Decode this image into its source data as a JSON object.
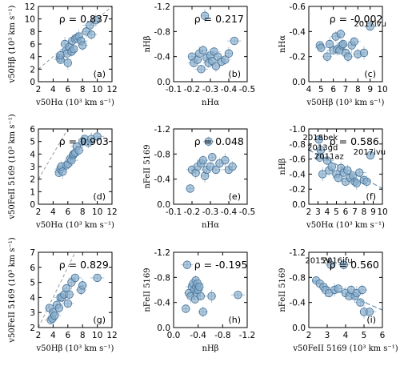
{
  "chart_data": [
    {
      "type": "scatter",
      "label": "(a)",
      "rho": "0.837",
      "xlim": [
        2,
        12
      ],
      "ylim": [
        0,
        12
      ],
      "xticks": [
        "2",
        "4",
        "6",
        "8",
        "10",
        "12"
      ],
      "yticks": [
        "0",
        "2",
        "4",
        "6",
        "8",
        "10",
        "12"
      ],
      "xlabel": "v50Hα (10³ km s⁻¹)",
      "ylabel": "v50Hβ (10³ km s⁻¹)",
      "diagonal": true,
      "fit": false,
      "points": [
        [
          4.9,
          3.8
        ],
        [
          5.0,
          3.5
        ],
        [
          5.0,
          4.2
        ],
        [
          5.6,
          6.0
        ],
        [
          5.8,
          5.0
        ],
        [
          5.9,
          4.5
        ],
        [
          6.0,
          3.0
        ],
        [
          6.2,
          5.5
        ],
        [
          6.5,
          4.8
        ],
        [
          6.6,
          6.5
        ],
        [
          6.8,
          5.2
        ],
        [
          7.0,
          6.8
        ],
        [
          7.2,
          7.0
        ],
        [
          7.5,
          7.2
        ],
        [
          7.8,
          6.5
        ],
        [
          8.0,
          5.8
        ],
        [
          8.5,
          8.0
        ],
        [
          9.0,
          9.0
        ],
        [
          9.2,
          7.5
        ],
        [
          9.8,
          9.8
        ]
      ]
    },
    {
      "type": "scatter",
      "label": "(b)",
      "rho": "0.217",
      "xlim": [
        -0.1,
        -0.5
      ],
      "ylim": [
        0.0,
        -1.2
      ],
      "xticks": [
        "-0.1",
        "-0.2",
        "-0.3",
        "-0.4",
        "-0.5"
      ],
      "yticks": [
        "-1.2",
        "-0.8",
        "-0.4",
        "0.0"
      ],
      "xlabel": "nHα",
      "ylabel": "nHβ",
      "diagonal": false,
      "fit": false,
      "points": [
        [
          -0.2,
          -0.4
        ],
        [
          -0.21,
          -0.3
        ],
        [
          -0.23,
          -0.35
        ],
        [
          -0.24,
          -0.45
        ],
        [
          -0.25,
          -0.2
        ],
        [
          -0.26,
          -0.5
        ],
        [
          -0.27,
          -1.05
        ],
        [
          -0.28,
          -0.38
        ],
        [
          -0.29,
          -0.3
        ],
        [
          -0.3,
          -0.42
        ],
        [
          -0.31,
          -0.33
        ],
        [
          -0.32,
          -0.48
        ],
        [
          -0.33,
          -0.25
        ],
        [
          -0.34,
          -0.4
        ],
        [
          -0.36,
          -0.32
        ],
        [
          -0.38,
          -0.35
        ],
        [
          -0.4,
          -0.45
        ],
        [
          -0.43,
          -0.65
        ]
      ]
    },
    {
      "type": "scatter",
      "label": "(c)",
      "rho": "-0.002",
      "xlim": [
        4,
        10
      ],
      "ylim": [
        0.0,
        -0.6
      ],
      "xticks": [
        "4",
        "5",
        "6",
        "7",
        "8",
        "9",
        "10"
      ],
      "yticks": [
        "-0.6",
        "-0.4",
        "-0.2",
        "0.0"
      ],
      "xlabel": "v50Hβ (10³ km s⁻¹)",
      "ylabel": "nHα",
      "diagonal": false,
      "fit": false,
      "annotations": [
        {
          "text": "2017ivu",
          "x": 9.0,
          "y": -0.44
        }
      ],
      "points": [
        [
          4.9,
          -0.29
        ],
        [
          5.0,
          -0.27
        ],
        [
          5.5,
          -0.2
        ],
        [
          5.7,
          -0.3
        ],
        [
          6.0,
          -0.25
        ],
        [
          6.2,
          -0.36
        ],
        [
          6.3,
          -0.26
        ],
        [
          6.5,
          -0.25
        ],
        [
          6.6,
          -0.38
        ],
        [
          6.7,
          -0.29
        ],
        [
          6.8,
          -0.3
        ],
        [
          7.0,
          -0.23
        ],
        [
          7.2,
          -0.2
        ],
        [
          7.5,
          -0.29
        ],
        [
          7.7,
          -0.32
        ],
        [
          8.0,
          -0.22
        ],
        [
          8.5,
          -0.23
        ],
        [
          9.0,
          -0.44
        ]
      ]
    },
    {
      "type": "scatter",
      "label": "(d)",
      "rho": "0.903",
      "xlim": [
        2,
        12
      ],
      "ylim": [
        0,
        6
      ],
      "xticks": [
        "2",
        "4",
        "6",
        "8",
        "10",
        "12"
      ],
      "yticks": [
        "0",
        "1",
        "2",
        "3",
        "4",
        "5",
        "6"
      ],
      "xlabel": "v50Hα (10³ km s⁻¹)",
      "ylabel": "v50FeII 5169 (10³ km s⁻¹)",
      "diagonal": true,
      "fit": false,
      "points": [
        [
          4.8,
          2.5
        ],
        [
          5.0,
          2.8
        ],
        [
          5.1,
          3.0
        ],
        [
          5.3,
          2.6
        ],
        [
          5.8,
          3.1
        ],
        [
          6.0,
          3.2
        ],
        [
          6.3,
          3.6
        ],
        [
          6.5,
          3.5
        ],
        [
          6.7,
          3.9
        ],
        [
          6.8,
          4.0
        ],
        [
          7.0,
          4.1
        ],
        [
          7.2,
          4.6
        ],
        [
          7.5,
          4.3
        ],
        [
          8.0,
          5.0
        ],
        [
          8.3,
          5.2
        ],
        [
          8.8,
          4.9
        ],
        [
          9.2,
          5.2
        ],
        [
          10.0,
          5.4
        ]
      ]
    },
    {
      "type": "scatter",
      "label": "(e)",
      "rho": "0.048",
      "xlim": [
        -0.1,
        -0.5
      ],
      "ylim": [
        0.0,
        -1.2
      ],
      "xticks": [
        "-0.1",
        "-0.2",
        "-0.3",
        "-0.4",
        "-0.5"
      ],
      "yticks": [
        "-1.2",
        "-0.8",
        "-0.4",
        "0.0"
      ],
      "xlabel": "nHα",
      "ylabel": "nFeII 5169",
      "diagonal": false,
      "fit": false,
      "points": [
        [
          -0.19,
          -0.25
        ],
        [
          -0.2,
          -0.55
        ],
        [
          -0.22,
          -0.5
        ],
        [
          -0.23,
          -0.6
        ],
        [
          -0.25,
          -0.65
        ],
        [
          -0.26,
          -0.7
        ],
        [
          -0.27,
          -0.45
        ],
        [
          -0.28,
          -0.55
        ],
        [
          -0.29,
          -1.0
        ],
        [
          -0.3,
          -0.6
        ],
        [
          -0.31,
          -0.75
        ],
        [
          -0.33,
          -0.55
        ],
        [
          -0.35,
          -0.65
        ],
        [
          -0.38,
          -0.7
        ],
        [
          -0.4,
          -0.55
        ],
        [
          -0.42,
          -0.6
        ]
      ]
    },
    {
      "type": "scatter",
      "label": "(f)",
      "rho": "0.586",
      "xlim": [
        2,
        10
      ],
      "ylim": [
        0.0,
        -1.0
      ],
      "xticks": [
        "2",
        "3",
        "4",
        "5",
        "6",
        "7",
        "8",
        "9",
        "10"
      ],
      "yticks": [
        "-1.0",
        "-0.8",
        "-0.6",
        "-0.4",
        "-0.2",
        "0.0"
      ],
      "xlabel": "v50Hα (10³ km s⁻¹)",
      "ylabel": "nHβ",
      "diagonal": false,
      "fit": true,
      "fit_line": [
        [
          2.0,
          -0.72
        ],
        [
          10.0,
          -0.21
        ]
      ],
      "annotations": [
        {
          "text": "2018bek",
          "x": 3.25,
          "y": -0.85
        },
        {
          "text": "2013gd",
          "x": 3.5,
          "y": -0.72
        },
        {
          "text": "2011az",
          "x": 4.2,
          "y": -0.6
        },
        {
          "text": "2017ivu",
          "x": 8.6,
          "y": -0.66
        }
      ],
      "points": [
        [
          3.1,
          -0.86
        ],
        [
          3.2,
          -0.62
        ],
        [
          3.3,
          -0.72
        ],
        [
          3.5,
          -0.4
        ],
        [
          4.0,
          -0.58
        ],
        [
          4.2,
          -0.45
        ],
        [
          4.5,
          -0.5
        ],
        [
          5.0,
          -0.4
        ],
        [
          5.2,
          -0.35
        ],
        [
          5.5,
          -0.48
        ],
        [
          5.8,
          -0.42
        ],
        [
          6.0,
          -0.3
        ],
        [
          6.2,
          -0.45
        ],
        [
          6.5,
          -0.35
        ],
        [
          6.8,
          -0.38
        ],
        [
          7.0,
          -0.3
        ],
        [
          7.2,
          -0.28
        ],
        [
          7.5,
          -0.42
        ],
        [
          8.0,
          -0.32
        ],
        [
          8.3,
          -0.3
        ],
        [
          8.7,
          -0.65
        ]
      ]
    },
    {
      "type": "scatter",
      "label": "(g)",
      "rho": "0.829",
      "xlim": [
        2,
        12
      ],
      "ylim": [
        2,
        7
      ],
      "xticks": [
        "2",
        "4",
        "6",
        "8",
        "10",
        "12"
      ],
      "yticks": [
        "2",
        "3",
        "4",
        "5",
        "6",
        "7"
      ],
      "xlabel": "v50Hβ (10³ km s⁻¹)",
      "ylabel": "v50FeII 5169 (10³ km s⁻¹)",
      "diagonal": true,
      "fit": false,
      "points": [
        [
          3.5,
          3.3
        ],
        [
          3.7,
          2.5
        ],
        [
          3.9,
          2.6
        ],
        [
          4.0,
          3.0
        ],
        [
          4.2,
          2.8
        ],
        [
          4.5,
          3.5
        ],
        [
          4.8,
          3.3
        ],
        [
          5.0,
          4.0
        ],
        [
          5.2,
          4.0
        ],
        [
          5.5,
          4.2
        ],
        [
          5.8,
          4.6
        ],
        [
          6.0,
          3.6
        ],
        [
          6.2,
          4.2
        ],
        [
          6.5,
          5.0
        ],
        [
          7.0,
          5.3
        ],
        [
          7.8,
          4.5
        ],
        [
          8.0,
          4.8
        ],
        [
          10.0,
          5.3
        ]
      ]
    },
    {
      "type": "scatter",
      "label": "(h)",
      "rho": "-0.195",
      "xlim": [
        0.0,
        -1.2
      ],
      "ylim": [
        0.0,
        -1.2
      ],
      "xticks": [
        "0.0",
        "-0.4",
        "-0.8",
        "-1.2"
      ],
      "yticks": [
        "-1.2",
        "-0.8",
        "-0.4",
        "0.0"
      ],
      "xlabel": "nHβ",
      "ylabel": "nFeII 5169",
      "diagonal": false,
      "fit": false,
      "points": [
        [
          -0.2,
          -0.3
        ],
        [
          -0.22,
          -1.0
        ],
        [
          -0.25,
          -0.55
        ],
        [
          -0.28,
          -0.5
        ],
        [
          -0.3,
          -0.65
        ],
        [
          -0.32,
          -0.7
        ],
        [
          -0.34,
          -0.6
        ],
        [
          -0.35,
          -0.45
        ],
        [
          -0.36,
          -0.75
        ],
        [
          -0.37,
          -0.65
        ],
        [
          -0.38,
          -0.55
        ],
        [
          -0.39,
          -0.7
        ],
        [
          -0.4,
          -0.6
        ],
        [
          -0.42,
          -0.65
        ],
        [
          -0.44,
          -0.5
        ],
        [
          -0.48,
          -0.25
        ],
        [
          -0.62,
          -0.5
        ],
        [
          -1.05,
          -0.52
        ]
      ]
    },
    {
      "type": "scatter",
      "label": "(i)",
      "rho": "0.560",
      "xlim": [
        2,
        6
      ],
      "ylim": [
        0.0,
        -1.2
      ],
      "xticks": [
        "2",
        "3",
        "4",
        "5",
        "6"
      ],
      "yticks": [
        "-1.2",
        "-0.8",
        "-0.4",
        "0.0"
      ],
      "xlabel": "v50FeII 5169 (10³ km s⁻¹)",
      "ylabel": "nFeII 5169",
      "diagonal": false,
      "fit": true,
      "fit_line": [
        [
          2.2,
          -0.75
        ],
        [
          6.0,
          -0.28
        ]
      ],
      "annotations": [
        {
          "text": "2015V",
          "x": 2.5,
          "y": -1.03
        },
        {
          "text": "2016ifu",
          "x": 3.55,
          "y": -1.03
        }
      ],
      "points": [
        [
          2.4,
          -0.75
        ],
        [
          2.6,
          -0.7
        ],
        [
          2.8,
          -0.65
        ],
        [
          2.9,
          -0.6
        ],
        [
          3.1,
          -0.55
        ],
        [
          3.2,
          -1.0
        ],
        [
          3.4,
          -0.6
        ],
        [
          3.6,
          -0.62
        ],
        [
          3.9,
          -1.0
        ],
        [
          4.0,
          -0.55
        ],
        [
          4.2,
          -0.5
        ],
        [
          4.3,
          -0.6
        ],
        [
          4.5,
          -0.5
        ],
        [
          4.6,
          -0.55
        ],
        [
          4.8,
          -0.4
        ],
        [
          4.9,
          -0.6
        ],
        [
          5.0,
          -0.25
        ],
        [
          5.3,
          -0.25
        ]
      ]
    }
  ]
}
